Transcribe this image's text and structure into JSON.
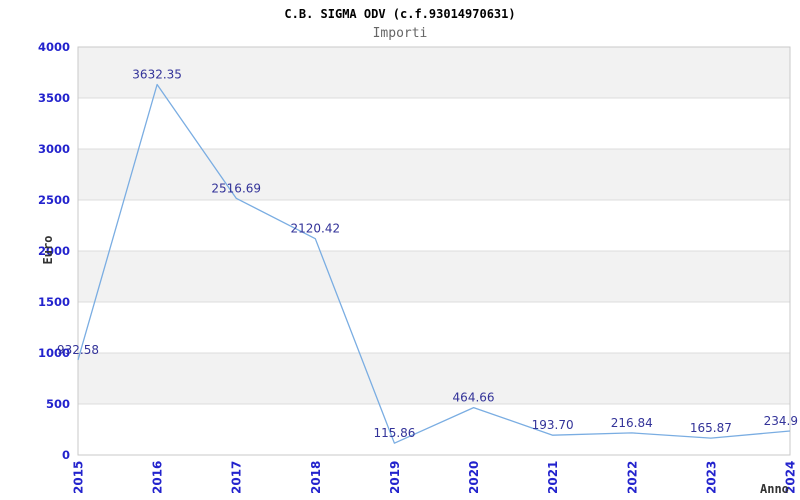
{
  "header": {
    "title": "C.B. SIGMA ODV (c.f.93014970631)",
    "subtitle": "Importi"
  },
  "axes": {
    "y_label": "Euro",
    "x_label": "Anno"
  },
  "chart_data": {
    "type": "line",
    "title": "C.B. SIGMA ODV (c.f.93014970631)",
    "subtitle": "Importi",
    "xlabel": "Anno",
    "ylabel": "Euro",
    "x": [
      "2015",
      "2016",
      "2017",
      "2018",
      "2019",
      "2020",
      "2021",
      "2022",
      "2023",
      "2024"
    ],
    "values": [
      932.58,
      3632.35,
      2516.69,
      2120.42,
      115.86,
      464.66,
      193.7,
      216.84,
      165.87,
      234.9
    ],
    "point_labels": [
      "932.58",
      "3632.35",
      "2516.69",
      "2120.42",
      "115.86",
      "464.66",
      "193.70",
      "216.84",
      "165.87",
      "234.9"
    ],
    "ylim": [
      0,
      4000
    ],
    "yticks": [
      0,
      500,
      1000,
      1500,
      2000,
      2500,
      3000,
      3500,
      4000
    ],
    "grid": true,
    "background_bands": true,
    "legend_position": "none",
    "series_count": 1
  },
  "colors": {
    "line": "#7aade2",
    "axis_tick": "#2323cd",
    "point_label": "#333399",
    "band": "#f2f2f2",
    "band_alt": "#ffffff",
    "gridline": "#dcdcdc",
    "plot_border": "#c9c9c9",
    "title": "#000000",
    "subtitle": "#666666",
    "axis_title": "#333333",
    "background": "#ffffff"
  }
}
